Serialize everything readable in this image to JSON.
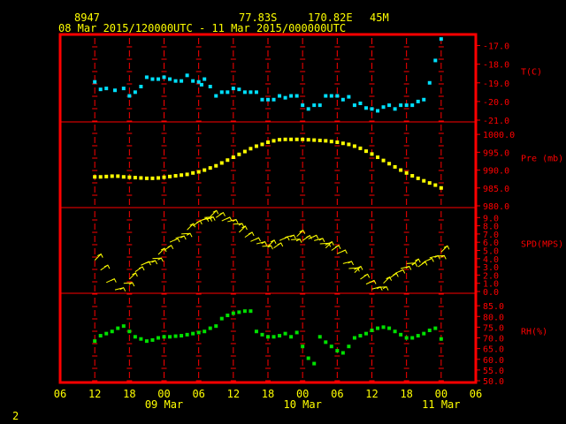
{
  "header": {
    "station": "8947",
    "lat": "77.83S",
    "lon": "170.82E",
    "elev": "45M",
    "range": "08 Mar 2015/120000UTC - 11 Mar 2015/000000UTC"
  },
  "footer": {
    "page": "2"
  },
  "colors": {
    "frame": "#ff0000",
    "grid": "#ff0000",
    "temp": "#00e0ff",
    "pres": "#ffff00",
    "wind": "#ffff00",
    "rh": "#00e000",
    "label": "#ff0000",
    "axis_text": "#ffff00"
  },
  "chart_data": {
    "type": "scatter",
    "x_axis": {
      "unit": "hours (UTC)",
      "ticks": [
        "06",
        "12",
        "18",
        "00",
        "06",
        "12",
        "18",
        "00",
        "06",
        "12",
        "18",
        "00",
        "06"
      ],
      "day_labels": [
        {
          "hour": 24,
          "label": "09 Mar"
        },
        {
          "hour": 48,
          "label": "10 Mar"
        },
        {
          "hour": 72,
          "label": "11 Mar"
        }
      ],
      "range": [
        6,
        78
      ]
    },
    "panels": [
      {
        "name": "temperature",
        "label": "T(C)",
        "ylim": [
          -21,
          -16.5
        ],
        "ticks": [
          "-17.0",
          "-18.0",
          "-19.0",
          "-20.0",
          "-21.0"
        ],
        "tick_values": [
          -17,
          -18,
          -19,
          -20,
          -21
        ],
        "x": [
          12,
          13,
          14,
          15.5,
          17,
          18,
          19,
          20,
          21,
          22,
          23,
          24,
          25,
          26,
          27,
          28,
          29,
          30,
          30.5,
          31,
          32,
          33,
          34,
          35,
          36,
          37,
          38,
          39,
          40,
          41,
          42,
          43,
          44,
          45,
          46,
          47,
          48,
          49,
          50,
          51,
          52,
          53,
          54,
          55,
          56,
          57,
          58,
          59,
          60,
          61,
          62,
          63,
          64,
          65,
          66,
          67,
          68,
          69,
          70,
          71,
          72
        ],
        "values": [
          -18.95,
          -19.35,
          -19.3,
          -19.4,
          -19.3,
          -19.7,
          -19.5,
          -19.2,
          -18.7,
          -18.8,
          -18.8,
          -18.7,
          -18.8,
          -18.9,
          -18.9,
          -18.6,
          -18.9,
          -18.95,
          -19.1,
          -18.8,
          -19.2,
          -19.7,
          -19.5,
          -19.5,
          -19.3,
          -19.35,
          -19.5,
          -19.5,
          -19.5,
          -19.9,
          -19.9,
          -19.9,
          -19.7,
          -19.8,
          -19.7,
          -19.7,
          -20.2,
          -20.4,
          -20.2,
          -20.2,
          -19.7,
          -19.7,
          -19.7,
          -19.9,
          -19.75,
          -20.2,
          -20.1,
          -20.35,
          -20.4,
          -20.5,
          -20.3,
          -20.2,
          -20.4,
          -20.2,
          -20.2,
          -20.2,
          -20.0,
          -19.9,
          -19.0,
          -17.8,
          -16.65
        ]
      },
      {
        "name": "pressure",
        "label": "Pre (mb)",
        "ylim": [
          980,
          1003
        ],
        "ticks": [
          "1000.0",
          "995.0",
          "990.0",
          "985.0",
          "980.0"
        ],
        "tick_values": [
          1000,
          995,
          990,
          985,
          980
        ],
        "x": [
          12,
          13,
          14,
          15,
          16,
          17,
          18,
          19,
          20,
          21,
          22,
          23,
          24,
          25,
          26,
          27,
          28,
          29,
          30,
          31,
          32,
          33,
          34,
          35,
          36,
          37,
          38,
          39,
          40,
          41,
          42,
          43,
          44,
          45,
          46,
          47,
          48,
          49,
          50,
          51,
          52,
          53,
          54,
          55,
          56,
          57,
          58,
          59,
          60,
          61,
          62,
          63,
          64,
          65,
          66,
          67,
          68,
          69,
          70,
          71,
          72
        ],
        "values": [
          988.1,
          988.1,
          988.2,
          988.3,
          988.3,
          988.1,
          988.0,
          987.9,
          987.8,
          987.7,
          987.7,
          987.8,
          988.0,
          988.2,
          988.4,
          988.6,
          988.8,
          989.2,
          989.5,
          990.0,
          990.6,
          991.2,
          992.0,
          992.8,
          993.6,
          994.4,
          995.2,
          996.0,
          996.7,
          997.2,
          997.8,
          998.2,
          998.5,
          998.6,
          998.6,
          998.6,
          998.6,
          998.5,
          998.4,
          998.3,
          998.2,
          998.0,
          997.8,
          997.5,
          997.2,
          996.7,
          996.1,
          995.3,
          994.5,
          993.6,
          992.7,
          991.8,
          990.9,
          990.0,
          989.2,
          988.4,
          987.7,
          987.0,
          986.4,
          985.8,
          985.0
        ]
      },
      {
        "name": "wind",
        "label": "SPD(MPS)",
        "ylim": [
          0,
          10
        ],
        "ticks": [
          "9.0",
          "8.0",
          "7.0",
          "6.0",
          "5.0",
          "4.0",
          "3.0",
          "2.0",
          "1.0",
          "0.0"
        ],
        "tick_values": [
          9,
          8,
          7,
          6,
          5,
          4,
          3,
          2,
          1,
          0
        ],
        "x": [
          12,
          13,
          14,
          15.5,
          17,
          18,
          19,
          20,
          21,
          22,
          23,
          24,
          25,
          26,
          27,
          28,
          29,
          30,
          30.5,
          31,
          32,
          33,
          34,
          35,
          36,
          37,
          38,
          39,
          40,
          41,
          42,
          43,
          44,
          45,
          46,
          47,
          48,
          49,
          50,
          51,
          52,
          53,
          54,
          55,
          56,
          57,
          58,
          59,
          60,
          61,
          62,
          63,
          64,
          65,
          66,
          67,
          68,
          69,
          70,
          71,
          72
        ],
        "values": [
          3.8,
          2.6,
          1.1,
          0.2,
          1.0,
          1.5,
          2.4,
          3.2,
          3.5,
          4.0,
          4.5,
          5.0,
          6.0,
          6.5,
          7.0,
          7.5,
          8.0,
          8.5,
          8.7,
          9.0,
          9.1,
          9.0,
          8.6,
          8.5,
          8.2,
          7.2,
          6.6,
          6.1,
          5.8,
          5.5,
          5.5,
          5.3,
          6.2,
          6.6,
          6.3,
          6.7,
          6.2,
          6.4,
          6.2,
          5.8,
          5.3,
          5.0,
          4.6,
          3.4,
          2.8,
          2.3,
          1.5,
          0.9,
          0.3,
          0.5,
          1.0,
          1.6,
          2.2,
          2.8,
          3.4,
          3.2,
          3.0,
          3.6,
          4.1,
          4.3,
          4.8
        ]
      },
      {
        "name": "rh",
        "label": "RH(%)",
        "ylim": [
          50,
          90
        ],
        "ticks": [
          "85.0",
          "80.0",
          "75.0",
          "70.0",
          "65.0",
          "60.0",
          "55.0",
          "50.0"
        ],
        "tick_values": [
          85,
          80,
          75,
          70,
          65,
          60,
          55,
          50
        ],
        "x": [
          12,
          13,
          14,
          15,
          16,
          17,
          18,
          19,
          20,
          21,
          22,
          23,
          24,
          25,
          26,
          27,
          28,
          29,
          30,
          31,
          32,
          33,
          34,
          35,
          36,
          37,
          38,
          39,
          40,
          41,
          42,
          43,
          44,
          45,
          46,
          47,
          48,
          49,
          50,
          51,
          52,
          53,
          54,
          55,
          56,
          57,
          58,
          59,
          60,
          61,
          62,
          63,
          64,
          65,
          66,
          67,
          68,
          69,
          70,
          71,
          72
        ],
        "values": [
          68.5,
          71.0,
          72.0,
          73.0,
          74.5,
          75.5,
          73.0,
          70.5,
          69.5,
          68.5,
          69.0,
          70.0,
          70.5,
          70.5,
          70.8,
          71.0,
          71.5,
          72.0,
          72.5,
          73.0,
          74.5,
          75.5,
          79.0,
          80.5,
          81.5,
          82.0,
          82.5,
          82.5,
          73.0,
          71.5,
          70.5,
          70.5,
          71.0,
          72.0,
          70.5,
          72.5,
          66.0,
          60.5,
          58.0,
          70.5,
          68.0,
          66.0,
          64.0,
          63.0,
          66.0,
          70.0,
          71.0,
          72.0,
          73.5,
          74.5,
          75.0,
          74.5,
          73.0,
          71.5,
          70.0,
          70.0,
          71.0,
          72.0,
          73.5,
          74.5,
          69.5
        ]
      }
    ]
  }
}
